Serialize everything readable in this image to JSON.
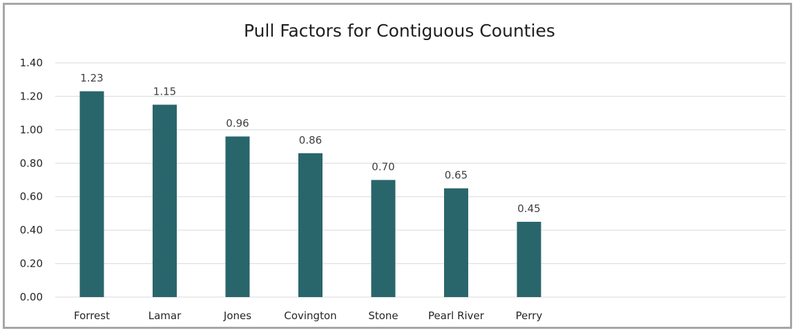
{
  "chart_data": {
    "type": "bar",
    "title": "Pull Factors for Contiguous Counties",
    "xlabel": "",
    "ylabel": "",
    "categories": [
      "Forrest",
      "Lamar",
      "Jones",
      "Covington",
      "Stone",
      "Pearl River",
      "Perry"
    ],
    "values": [
      1.23,
      1.15,
      0.96,
      0.86,
      0.7,
      0.65,
      0.45
    ],
    "data_labels": [
      "1.23",
      "1.15",
      "0.96",
      "0.86",
      "0.70",
      "0.65",
      "0.45"
    ],
    "ylim": [
      0,
      1.4
    ],
    "yticks": [
      "0.00",
      "0.20",
      "0.40",
      "0.60",
      "0.80",
      "1.00",
      "1.20",
      "1.40"
    ],
    "grid": true,
    "legend": "none",
    "bar_color": "#29666b",
    "grid_color": "#d9d9d9"
  }
}
